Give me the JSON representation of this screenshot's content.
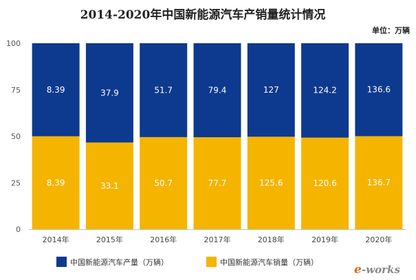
{
  "chart_data": {
    "type": "bar",
    "stacked": true,
    "normalized": true,
    "title": "2014-2020年中国新能源汽车产销量统计情况",
    "unit_note": "单位：万辆",
    "categories": [
      "2014年",
      "2015年",
      "2016年",
      "2017年",
      "2018年",
      "2019年",
      "2020年"
    ],
    "ylim": [
      0,
      100
    ],
    "yticks": [
      0,
      25,
      50,
      75,
      100
    ],
    "grid": false,
    "legend_position": "bottom",
    "series": [
      {
        "name": "中国新能源汽车销量（万辆）",
        "values": [
          8.39,
          33.1,
          50.7,
          77.7,
          125.6,
          120.6,
          136.7
        ],
        "labels": [
          "8.39",
          "33.1",
          "50.7",
          "77.7",
          "125.6",
          "120.6",
          "136.7"
        ],
        "color": "#f5b400"
      },
      {
        "name": "中国新能源汽车产量（万辆）",
        "values": [
          8.39,
          37.9,
          51.7,
          79.4,
          127,
          124.2,
          136.6
        ],
        "labels": [
          "8.39",
          "37.9",
          "51.7",
          "79.4",
          "127",
          "124.2",
          "136.6"
        ],
        "color": "#0d3a8e"
      }
    ],
    "legend_order": [
      1,
      0
    ]
  },
  "logo": {
    "text_e": "e",
    "text_rest": "-works"
  }
}
